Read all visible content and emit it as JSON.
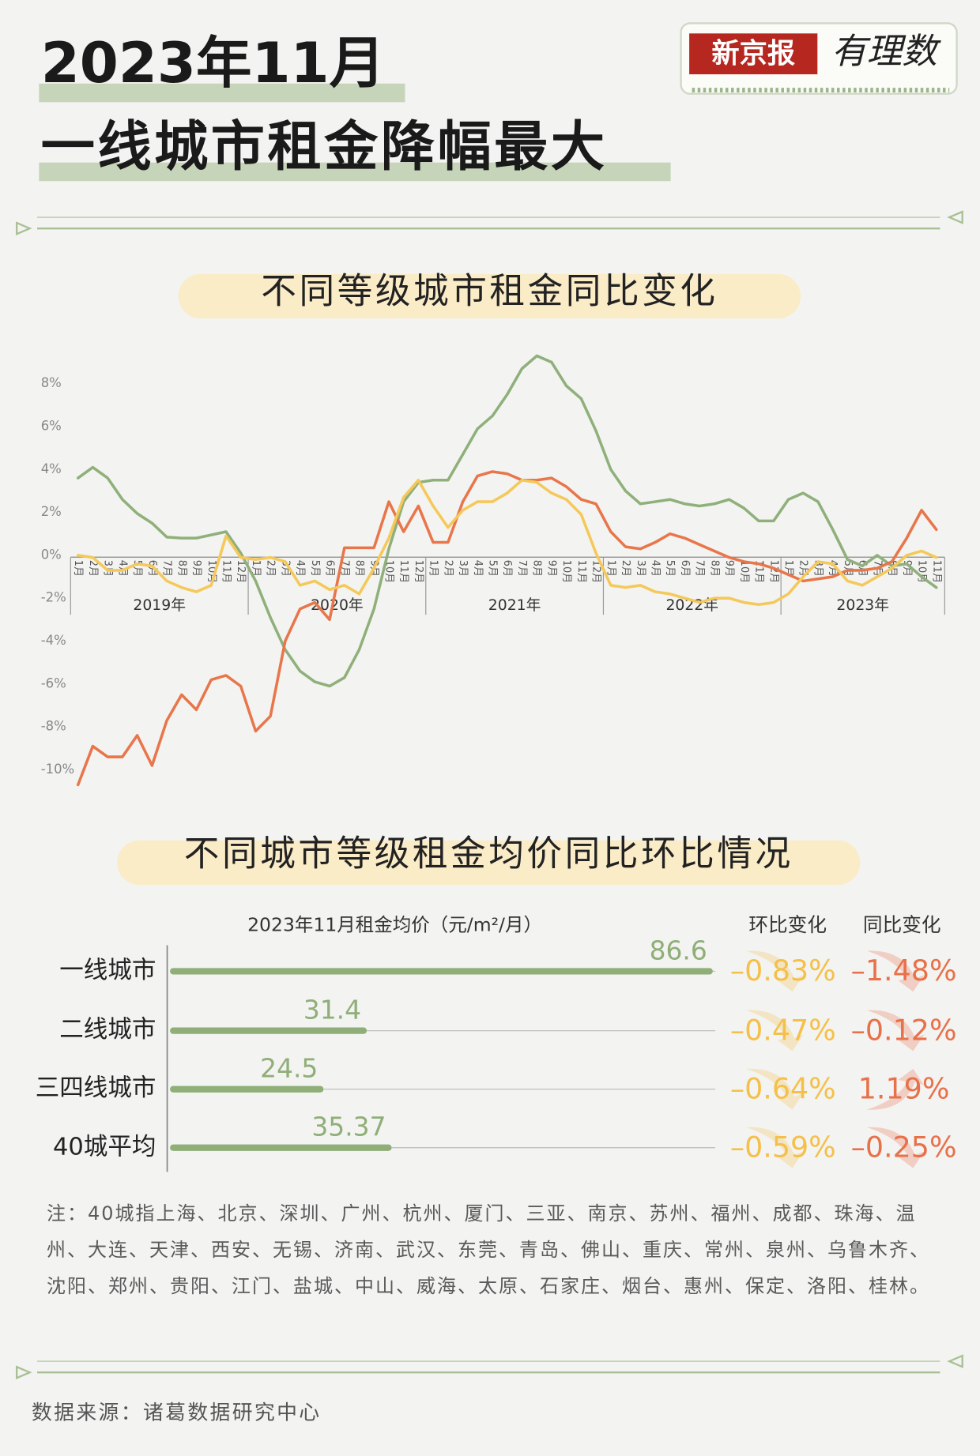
{
  "header": {
    "title_line1": "2023年11月",
    "title_line2": "一线城市租金降幅最大",
    "logo_brand": "新京报",
    "logo_column": "有理数"
  },
  "chart_data": [
    {
      "type": "line",
      "title": "不同等级城市租金同比变化",
      "categories": [
        "1月",
        "2月",
        "3月",
        "4月",
        "5月",
        "6月",
        "7月",
        "8月",
        "9月",
        "10月",
        "11月",
        "12月",
        "1月",
        "2月",
        "3月",
        "4月",
        "5月",
        "6月",
        "7月",
        "8月",
        "9月",
        "10月",
        "11月",
        "12月",
        "1月",
        "2月",
        "3月",
        "4月",
        "5月",
        "6月",
        "7月",
        "8月",
        "9月",
        "10月",
        "11月",
        "12月",
        "1月",
        "2月",
        "3月",
        "4月",
        "5月",
        "6月",
        "7月",
        "8月",
        "9月",
        "10月",
        "11月",
        "12月",
        "1月",
        "2月",
        "3月",
        "4月",
        "5月",
        "6月",
        "7月",
        "8月",
        "9月",
        "10月",
        "11月"
      ],
      "groups": [
        "2019年",
        "2020年",
        "2021年",
        "2022年",
        "2023年"
      ],
      "series": [
        {
          "color": "#8fb07a",
          "values": [
            3.6,
            4.1,
            3.6,
            2.6,
            1.95,
            1.5,
            0.85,
            0.8,
            0.8,
            0.95,
            1.1,
            0.1,
            -1.2,
            -2.9,
            -4.4,
            -5.4,
            -5.9,
            -6.1,
            -5.7,
            -4.4,
            -2.5,
            0.3,
            2.5,
            3.4,
            3.5,
            3.5,
            4.7,
            5.9,
            6.5,
            7.5,
            8.7,
            9.3,
            9.0,
            7.9,
            7.3,
            5.8,
            4.0,
            3.0,
            2.4,
            2.5,
            2.6,
            2.4,
            2.3,
            2.4,
            2.6,
            2.2,
            1.6,
            1.6,
            2.6,
            2.9,
            2.5,
            1.2,
            -0.2,
            -0.5,
            0,
            -0.5,
            -0.4,
            -1.0,
            -1.5
          ]
        },
        {
          "color": "#e8764a",
          "values": [
            -10.7,
            -8.9,
            -9.4,
            -9.4,
            -8.4,
            -9.8,
            -7.7,
            -6.5,
            -7.2,
            -5.8,
            -5.6,
            -6.1,
            -8.2,
            -7.5,
            -4.0,
            -2.5,
            -2.2,
            -3.0,
            0.35,
            0.35,
            0.35,
            2.5,
            1.1,
            2.3,
            0.6,
            0.6,
            2.5,
            3.7,
            3.9,
            3.8,
            3.5,
            3.5,
            3.6,
            3.2,
            2.6,
            2.4,
            1.1,
            0.4,
            0.3,
            0.6,
            1.0,
            0.8,
            0.5,
            0.2,
            -0.1,
            -0.3,
            -0.4,
            -0.6,
            -0.9,
            -1.2,
            -1.1,
            -1.0,
            -0.7,
            -0.7,
            -0.6,
            -0.3,
            0.8,
            2.1,
            1.2
          ]
        },
        {
          "color": "#f5c85a",
          "values": [
            0,
            -0.1,
            -0.7,
            -0.7,
            -0.4,
            -0.5,
            -1.2,
            -1.5,
            -1.7,
            -1.4,
            0.9,
            -0.1,
            -0.2,
            -0.1,
            -0.3,
            -1.4,
            -1.2,
            -1.6,
            -1.4,
            -1.8,
            -0.6,
            0.8,
            2.7,
            3.5,
            2.3,
            1.3,
            2.1,
            2.5,
            2.5,
            2.9,
            3.5,
            3.4,
            2.9,
            2.6,
            1.9,
            0.1,
            -1.4,
            -1.5,
            -1.4,
            -1.7,
            -1.8,
            -2.0,
            -2.2,
            -2.0,
            -2.0,
            -2.2,
            -2.3,
            -2.2,
            -1.8,
            -1.0,
            -0.3,
            -0.4,
            -1.2,
            -1.4,
            -1.0,
            -0.6,
            0,
            0.2,
            -0.1
          ]
        }
      ],
      "ylim": [
        -11,
        10
      ],
      "yticks": [
        {
          "value": 8,
          "label": "8%"
        },
        {
          "value": 6,
          "label": "6%"
        },
        {
          "value": 4,
          "label": "4%"
        },
        {
          "value": 2,
          "label": "2%"
        },
        {
          "value": 0,
          "label": "0%"
        },
        {
          "value": -2,
          "label": "-2%"
        },
        {
          "value": -4,
          "label": "-4%"
        },
        {
          "value": -6,
          "label": "-6%"
        },
        {
          "value": -8,
          "label": "-8%"
        },
        {
          "value": -10,
          "label": "-10%"
        }
      ],
      "grid": false
    },
    {
      "type": "bar",
      "horizontal": true,
      "title": "不同城市等级租金均价同比环比情况",
      "xlabel": "2023年11月租金均价（元/m²/月）",
      "categories": [
        "一线城市",
        "二线城市",
        "三四线城市",
        "40城平均"
      ],
      "values": [
        86.6,
        31.4,
        24.5,
        35.37
      ],
      "color": "#8fae78",
      "xlim": [
        0,
        87
      ],
      "columns": [
        {
          "title": "环比变化",
          "color": "#f5c04a",
          "values": [
            -0.83,
            -0.47,
            -0.64,
            -0.59
          ],
          "value_labels": [
            "–0.83%",
            "–0.47%",
            "–0.64%",
            "–0.59%"
          ]
        },
        {
          "title": "同比变化",
          "color": "#e8714a",
          "values": [
            -1.48,
            -0.12,
            1.19,
            -0.25
          ],
          "value_labels": [
            "–1.48%",
            "–0.12%",
            "1.19%",
            "–0.25%"
          ]
        }
      ]
    }
  ],
  "note": "注：40城指上海、北京、深圳、广州、杭州、厦门、三亚、南京、苏州、福州、成都、珠海、温州、大连、天津、西安、无锡、济南、武汉、东莞、青岛、佛山、重庆、常州、泉州、乌鲁木齐、沈阳、郑州、贵阳、江门、盐城、中山、威海、太原、石家庄、烟台、惠州、保定、洛阳、桂林。",
  "source": "数据来源：诸葛数据研究中心"
}
